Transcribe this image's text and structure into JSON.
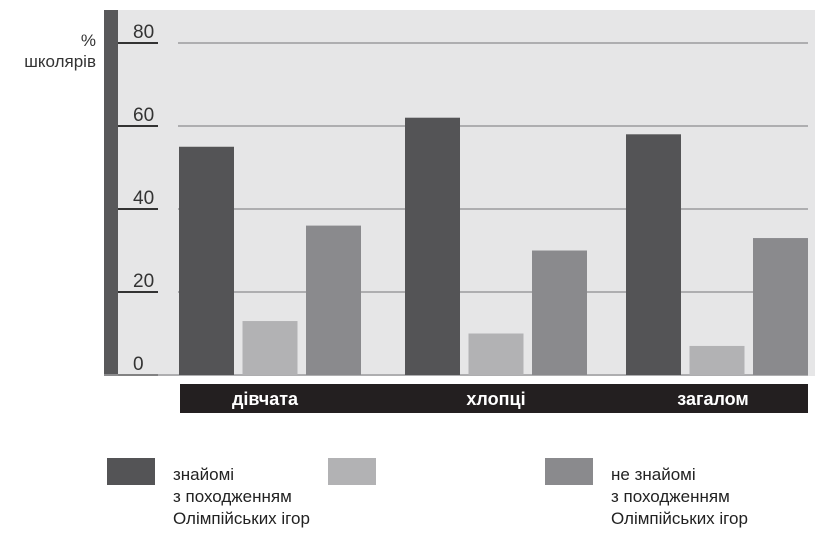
{
  "chart_data": {
    "type": "bar",
    "ylabel_lines": [
      "%",
      "школярів"
    ],
    "yticks": [
      "0",
      "20",
      "40",
      "60",
      "80"
    ],
    "ylim": [
      0,
      80
    ],
    "grid": true,
    "categories": [
      "дівчата",
      "хлопці",
      "загалом"
    ],
    "series": [
      {
        "name": "знайомі з походженням Олімпійських ігор",
        "color": "#545456",
        "values": [
          55,
          62,
          58
        ]
      },
      {
        "name": "",
        "color": "#b2b2b4",
        "values": [
          13,
          10,
          7
        ]
      },
      {
        "name": "не знайомі з походженням Олімпійських ігор",
        "color": "#8a8a8d",
        "values": [
          36,
          30,
          33
        ]
      }
    ]
  },
  "legend": [
    {
      "lines": [
        "знайомі",
        "з походженням",
        "Олімпійських ігор"
      ],
      "color": "#545456"
    },
    {
      "lines": [],
      "color": "#b2b2b4"
    },
    {
      "lines": [
        "не знайомі",
        "з походженням",
        "Олімпійських ігор"
      ],
      "color": "#8a8a8d"
    }
  ]
}
